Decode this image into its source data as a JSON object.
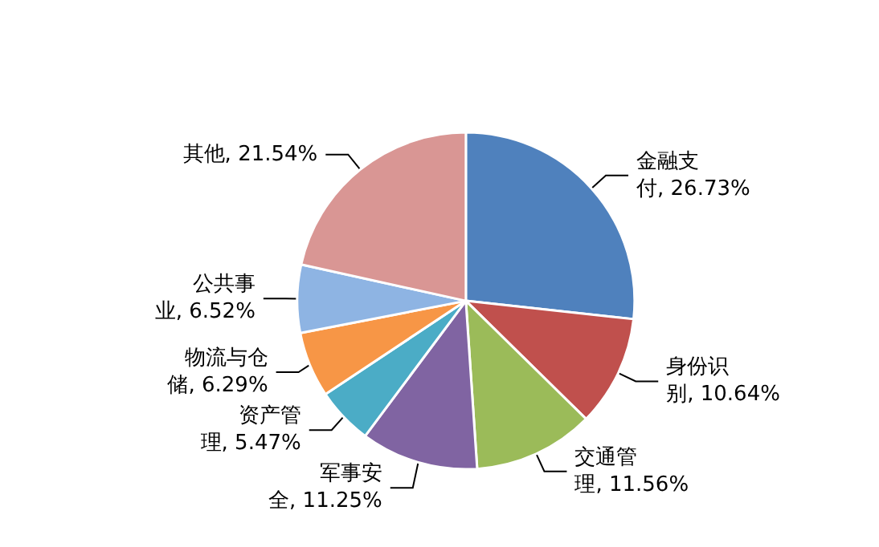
{
  "chart_data": {
    "type": "pie",
    "categories": [
      "金融支付",
      "身份识别",
      "交通管理",
      "军事安全",
      "资产管理",
      "物流与仓储",
      "公共事业",
      "其他"
    ],
    "values": [
      26.73,
      10.64,
      11.56,
      11.25,
      5.47,
      6.29,
      6.52,
      21.54
    ],
    "value_labels": [
      "26.73%",
      "10.64%",
      "11.56%",
      "11.25%",
      "5.47%",
      "6.29%",
      "6.52%",
      "21.54%"
    ],
    "colors": [
      "#4f81bd",
      "#c0504d",
      "#9bbb59",
      "#8064a2",
      "#4bacc6",
      "#f79646",
      "#8eb4e3",
      "#d99694"
    ]
  }
}
